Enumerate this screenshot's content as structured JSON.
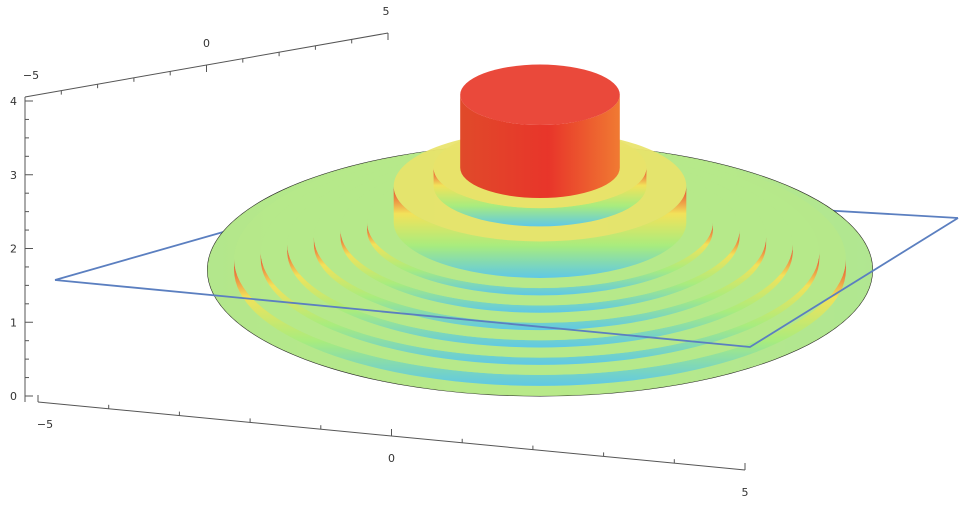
{
  "chart_data": {
    "type": "surface3d",
    "x_ticks": [
      "−5",
      "0",
      "5"
    ],
    "y_ticks": [
      "−5",
      "0",
      "5"
    ],
    "z_ticks": [
      "0",
      "1",
      "2",
      "3",
      "4"
    ],
    "xlim": [
      -5,
      5
    ],
    "ylim": [
      -5,
      5
    ],
    "zlim": [
      0,
      4
    ],
    "plane_z": 1.6,
    "rings": [
      {
        "r_outer": 5.0,
        "r_inner": 4.6,
        "z": 1.6
      },
      {
        "r_outer": 4.6,
        "r_inner": 4.2,
        "z": 1.75
      },
      {
        "r_outer": 4.2,
        "r_inner": 3.8,
        "z": 1.85
      },
      {
        "r_outer": 3.8,
        "r_inner": 3.4,
        "z": 1.95
      },
      {
        "r_outer": 3.4,
        "r_inner": 3.0,
        "z": 2.05
      },
      {
        "r_outer": 3.0,
        "r_inner": 2.6,
        "z": 2.15
      },
      {
        "r_outer": 2.6,
        "r_inner": 2.2,
        "z": 2.25
      },
      {
        "r_outer": 2.2,
        "r_inner": 1.6,
        "z": 2.75
      },
      {
        "r_outer": 1.6,
        "r_inner": 1.2,
        "z": 3.0
      },
      {
        "r_outer": 1.2,
        "r_inner": 0.0,
        "z": 4.0
      }
    ],
    "core_bottom_z": 0.45,
    "core_radius": 0.8,
    "grid": false,
    "colors": {
      "low": "#2b0a2e",
      "mid_low": "#5fc8e6",
      "mid": "#a8ec7e",
      "mid_high": "#f2e25a",
      "high": "#e83a2a",
      "plane": "#5b7fc0",
      "axis": "#555555"
    }
  }
}
